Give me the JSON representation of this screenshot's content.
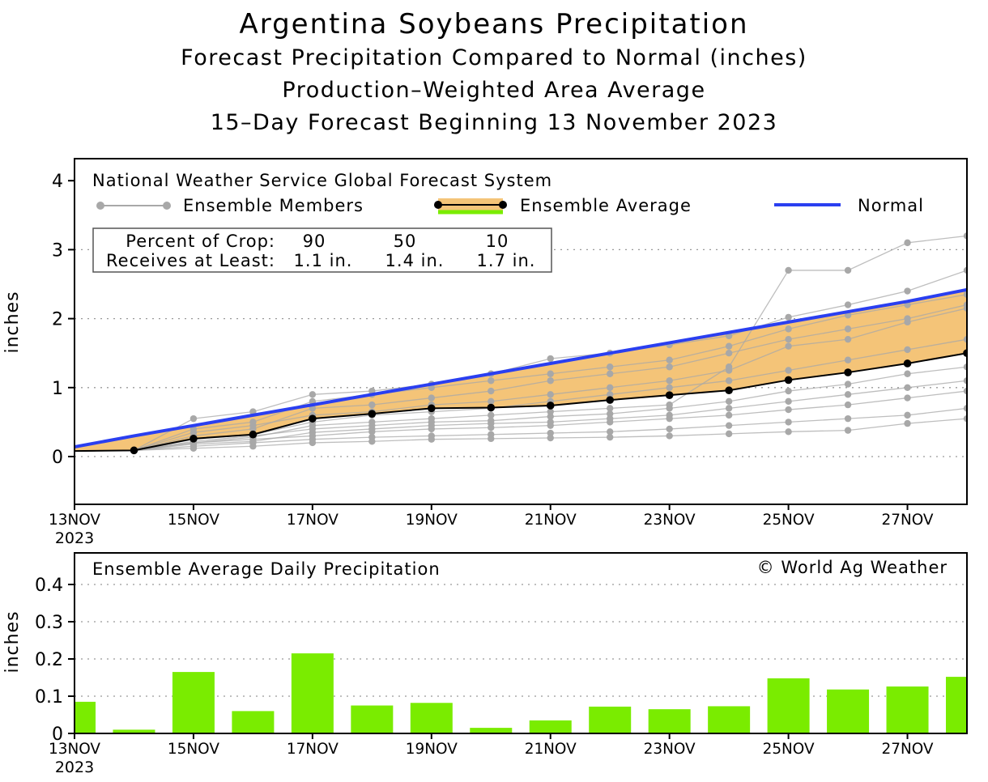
{
  "titles": {
    "main": "Argentina Soybeans Precipitation",
    "line2": "Forecast Precipitation Compared to Normal (inches)",
    "line3": "Production–Weighted Area Average",
    "line4": "15–Day Forecast Beginning 13 November 2023"
  },
  "colors": {
    "normal": "#2a3ff0",
    "band_fill": "#f4c478",
    "ensemble_avg": "#000000",
    "members": "#a8a8a8",
    "bars": "#7aec00",
    "grid": "#999999"
  },
  "legend": {
    "system": "National Weather Service Global Forecast System",
    "members": "Ensemble Members",
    "average": "Ensemble Average",
    "normal": "Normal"
  },
  "crop_box": {
    "row1_label": "Percent of Crop:",
    "row2_label": "Receives at Least:",
    "percents": [
      "90",
      "50",
      "10"
    ],
    "amounts": [
      "1.1 in.",
      "1.4 in.",
      "1.7 in."
    ]
  },
  "bottom_panel": {
    "title": "Ensemble Average Daily Precipitation",
    "credit": "© World Ag Weather"
  },
  "chart_data": [
    {
      "type": "line",
      "title": "Forecast Precipitation Compared to Normal (inches)",
      "ylabel": "inches",
      "ylim": [
        -0.75,
        4.3
      ],
      "yticks": [
        0,
        1,
        2,
        3,
        4
      ],
      "xticks": [
        "13NOV",
        "15NOV",
        "17NOV",
        "19NOV",
        "21NOV",
        "23NOV",
        "25NOV",
        "27NOV"
      ],
      "xtick_sub": "2023",
      "x": [
        "13NOV",
        "14NOV",
        "15NOV",
        "16NOV",
        "17NOV",
        "18NOV",
        "19NOV",
        "20NOV",
        "21NOV",
        "22NOV",
        "23NOV",
        "24NOV",
        "25NOV",
        "26NOV",
        "27NOV",
        "28NOV"
      ],
      "series": [
        {
          "name": "Normal",
          "values": [
            0.14,
            0.3,
            0.45,
            0.6,
            0.75,
            0.9,
            1.05,
            1.2,
            1.35,
            1.5,
            1.65,
            1.8,
            1.95,
            2.1,
            2.25,
            2.42
          ]
        },
        {
          "name": "Ensemble Average",
          "values": [
            0.08,
            0.09,
            0.26,
            0.32,
            0.55,
            0.62,
            0.7,
            0.71,
            0.74,
            0.82,
            0.89,
            0.96,
            1.11,
            1.22,
            1.35,
            1.5
          ]
        },
        {
          "name": "Ensemble Members",
          "values": [
            [
              0.08,
              0.09,
              0.12,
              0.15,
              0.2,
              0.22,
              0.25,
              0.26,
              0.27,
              0.28,
              0.3,
              0.33,
              0.36,
              0.38,
              0.48,
              0.55
            ],
            [
              0.08,
              0.09,
              0.15,
              0.2,
              0.25,
              0.28,
              0.3,
              0.32,
              0.34,
              0.36,
              0.4,
              0.45,
              0.5,
              0.55,
              0.6,
              0.7
            ],
            [
              0.08,
              0.09,
              0.2,
              0.25,
              0.3,
              0.36,
              0.4,
              0.42,
              0.45,
              0.5,
              0.55,
              0.6,
              0.68,
              0.75,
              0.85,
              0.95
            ],
            [
              0.08,
              0.09,
              0.25,
              0.32,
              0.5,
              0.6,
              0.65,
              0.7,
              0.8,
              0.9,
              1.0,
              1.1,
              1.25,
              1.4,
              1.55,
              1.7
            ],
            [
              0.08,
              0.09,
              0.3,
              0.4,
              0.7,
              0.75,
              0.85,
              0.95,
              1.1,
              1.2,
              1.3,
              1.5,
              1.7,
              1.85,
              2.0,
              2.2
            ],
            [
              0.08,
              0.09,
              0.4,
              0.5,
              0.8,
              0.9,
              1.0,
              1.1,
              1.2,
              1.3,
              1.4,
              1.6,
              1.85,
              2.05,
              2.2,
              2.35
            ],
            [
              0.08,
              0.09,
              0.55,
              0.65,
              0.9,
              0.95,
              1.05,
              1.2,
              1.42,
              1.5,
              1.62,
              1.75,
              2.02,
              2.2,
              2.4,
              2.7
            ],
            [
              0.08,
              0.09,
              0.35,
              0.45,
              0.6,
              0.65,
              0.75,
              0.8,
              0.9,
              1.0,
              1.1,
              1.25,
              1.6,
              1.7,
              1.95,
              2.15
            ],
            [
              0.08,
              0.09,
              0.2,
              0.28,
              0.45,
              0.5,
              0.55,
              0.6,
              0.65,
              0.7,
              0.75,
              1.3,
              2.7,
              2.7,
              3.1,
              3.2
            ],
            [
              0.08,
              0.09,
              0.18,
              0.22,
              0.35,
              0.4,
              0.45,
              0.48,
              0.5,
              0.55,
              0.6,
              0.7,
              0.8,
              0.9,
              1.0,
              1.1
            ],
            [
              0.08,
              0.09,
              0.22,
              0.3,
              0.4,
              0.45,
              0.5,
              0.52,
              0.58,
              0.62,
              0.7,
              0.8,
              0.95,
              1.05,
              1.2,
              1.3
            ]
          ]
        }
      ]
    },
    {
      "type": "bar",
      "title": "Ensemble Average Daily Precipitation",
      "ylabel": "inches",
      "ylim": [
        0,
        0.47
      ],
      "yticks": [
        0,
        0.1,
        0.2,
        0.3,
        0.4
      ],
      "ytick_labels": [
        "0",
        "0.1",
        "0.2",
        "0.3",
        "0.4"
      ],
      "xticks": [
        "13NOV",
        "15NOV",
        "17NOV",
        "19NOV",
        "21NOV",
        "23NOV",
        "25NOV",
        "27NOV"
      ],
      "xtick_sub": "2023",
      "categories": [
        "13NOV",
        "14NOV",
        "15NOV",
        "16NOV",
        "17NOV",
        "18NOV",
        "19NOV",
        "20NOV",
        "21NOV",
        "22NOV",
        "23NOV",
        "24NOV",
        "25NOV",
        "26NOV",
        "27NOV",
        "28NOV"
      ],
      "values": [
        0.085,
        0.01,
        0.165,
        0.06,
        0.215,
        0.075,
        0.082,
        0.015,
        0.035,
        0.072,
        0.065,
        0.073,
        0.148,
        0.118,
        0.126,
        0.152
      ]
    }
  ]
}
